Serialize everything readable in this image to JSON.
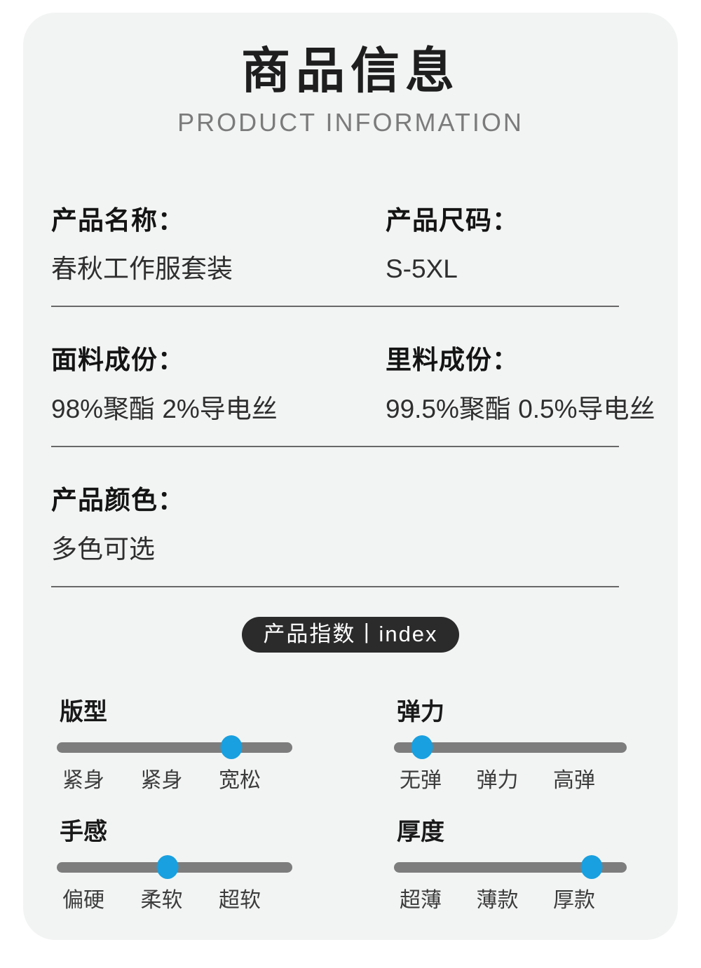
{
  "page": {
    "background": "#ffffff",
    "card_background": "#f2f4f3"
  },
  "header": {
    "title": "商品信息",
    "subtitle": "PRODUCT INFORMATION"
  },
  "info_rows": [
    {
      "fields": [
        {
          "label": "产品名称：",
          "value": "春秋工作服套装"
        },
        {
          "label": "产品尺码：",
          "value": "S-5XL"
        }
      ]
    },
    {
      "fields": [
        {
          "label": "面料成份：",
          "value": "98%聚酯 2%导电丝"
        },
        {
          "label": "里料成份：",
          "value": "99.5%聚酯 0.5%导电丝"
        }
      ]
    },
    {
      "fields": [
        {
          "label": "产品颜色：",
          "value": "多色可选"
        }
      ]
    }
  ],
  "index_badge": {
    "label": "产品指数丨index",
    "background": "#2b2b2b",
    "text_color": "#ffffff"
  },
  "sliders": [
    {
      "title": "版型",
      "percent": 74,
      "labels": [
        "紧身",
        "紧身",
        "宽松"
      ]
    },
    {
      "title": "弹力",
      "percent": 12,
      "labels": [
        "无弹",
        "弹力",
        "高弹"
      ]
    },
    {
      "title": "手感",
      "percent": 47,
      "labels": [
        "偏硬",
        "柔软",
        "超软"
      ]
    },
    {
      "title": "厚度",
      "percent": 85,
      "labels": [
        "超薄",
        "薄款",
        "厚款"
      ]
    }
  ],
  "colors": {
    "accent_blue": "#18a0e0",
    "track_gray": "#7d7d7d",
    "divider_gray": "#686868"
  }
}
